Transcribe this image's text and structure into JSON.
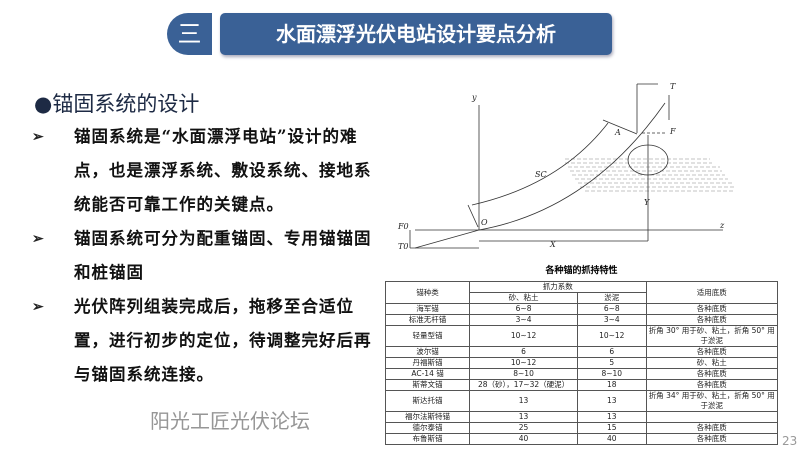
{
  "header": {
    "section_number": "三",
    "title": "水面漂浮光伏电站设计要点分析"
  },
  "content": {
    "heading": "●锚固系统的设计",
    "bullets": [
      "锚固系统是“水面漂浮电站”设计的难点，也是漂浮系统、敷设系统、接地系统能否可靠工作的关键点。",
      "锚固系统可分为配重锚固、专用锚锚固和桩锚固",
      "光伏阵列组装完成后，拖移至合适位置，进行初步的定位，待调整完好后再与锚固系统连接。"
    ],
    "bullet_marker": "➢"
  },
  "diagram": {
    "labels": {
      "y_axis": "y",
      "z_axis": "z",
      "origin": "O",
      "sc": "SC",
      "a": "A",
      "t": "T",
      "f": "F",
      "f0": "F0",
      "t0": "T0",
      "x": "X",
      "y": "Y"
    }
  },
  "table": {
    "title": "各种锚的抓持特性",
    "headers": {
      "type": "锚种类",
      "coef": "抓力系数",
      "sand": "砂、粘土",
      "mud": "淤泥",
      "bottom": "适用底质"
    },
    "rows": [
      {
        "type": "海军锚",
        "sand": "6~8",
        "mud": "6~8",
        "bottom": "各种底质"
      },
      {
        "type": "标准无杆锚",
        "sand": "3~4",
        "mud": "3~4",
        "bottom": "各种底质"
      },
      {
        "type": "轻量型锚",
        "sand": "10~12",
        "mud": "10~12",
        "bottom": "折角 30° 用于砂、粘土，折角 50° 用于淤泥"
      },
      {
        "type": "波尔锚",
        "sand": "6",
        "mud": "6",
        "bottom": "各种底质"
      },
      {
        "type": "丹福斯锚",
        "sand": "10~12",
        "mud": "5",
        "bottom": "砂、粘土"
      },
      {
        "type": "AC-14 锚",
        "sand": "8~10",
        "mud": "8~10",
        "bottom": "各种底质"
      },
      {
        "type": "斯蒂文锚",
        "sand": "28（砂），17~32（硬泥）",
        "mud": "18",
        "bottom": "各种底质"
      },
      {
        "type": "斯达托锚",
        "sand": "13",
        "mud": "13",
        "bottom": "折角 34° 用于砂、粘土，折角 50° 用于淤泥"
      },
      {
        "type": "福尔法斯特锚",
        "sand": "13",
        "mud": "13",
        "bottom": ""
      },
      {
        "type": "德尔泰锚",
        "sand": "25",
        "mud": "15",
        "bottom": "各种底质"
      },
      {
        "type": "布鲁斯锚",
        "sand": "40",
        "mud": "40",
        "bottom": "各种底质"
      }
    ]
  },
  "watermark": "阳光工匠光伏论坛",
  "page_number": "23",
  "colors": {
    "title_bar": "#3a6196"
  }
}
